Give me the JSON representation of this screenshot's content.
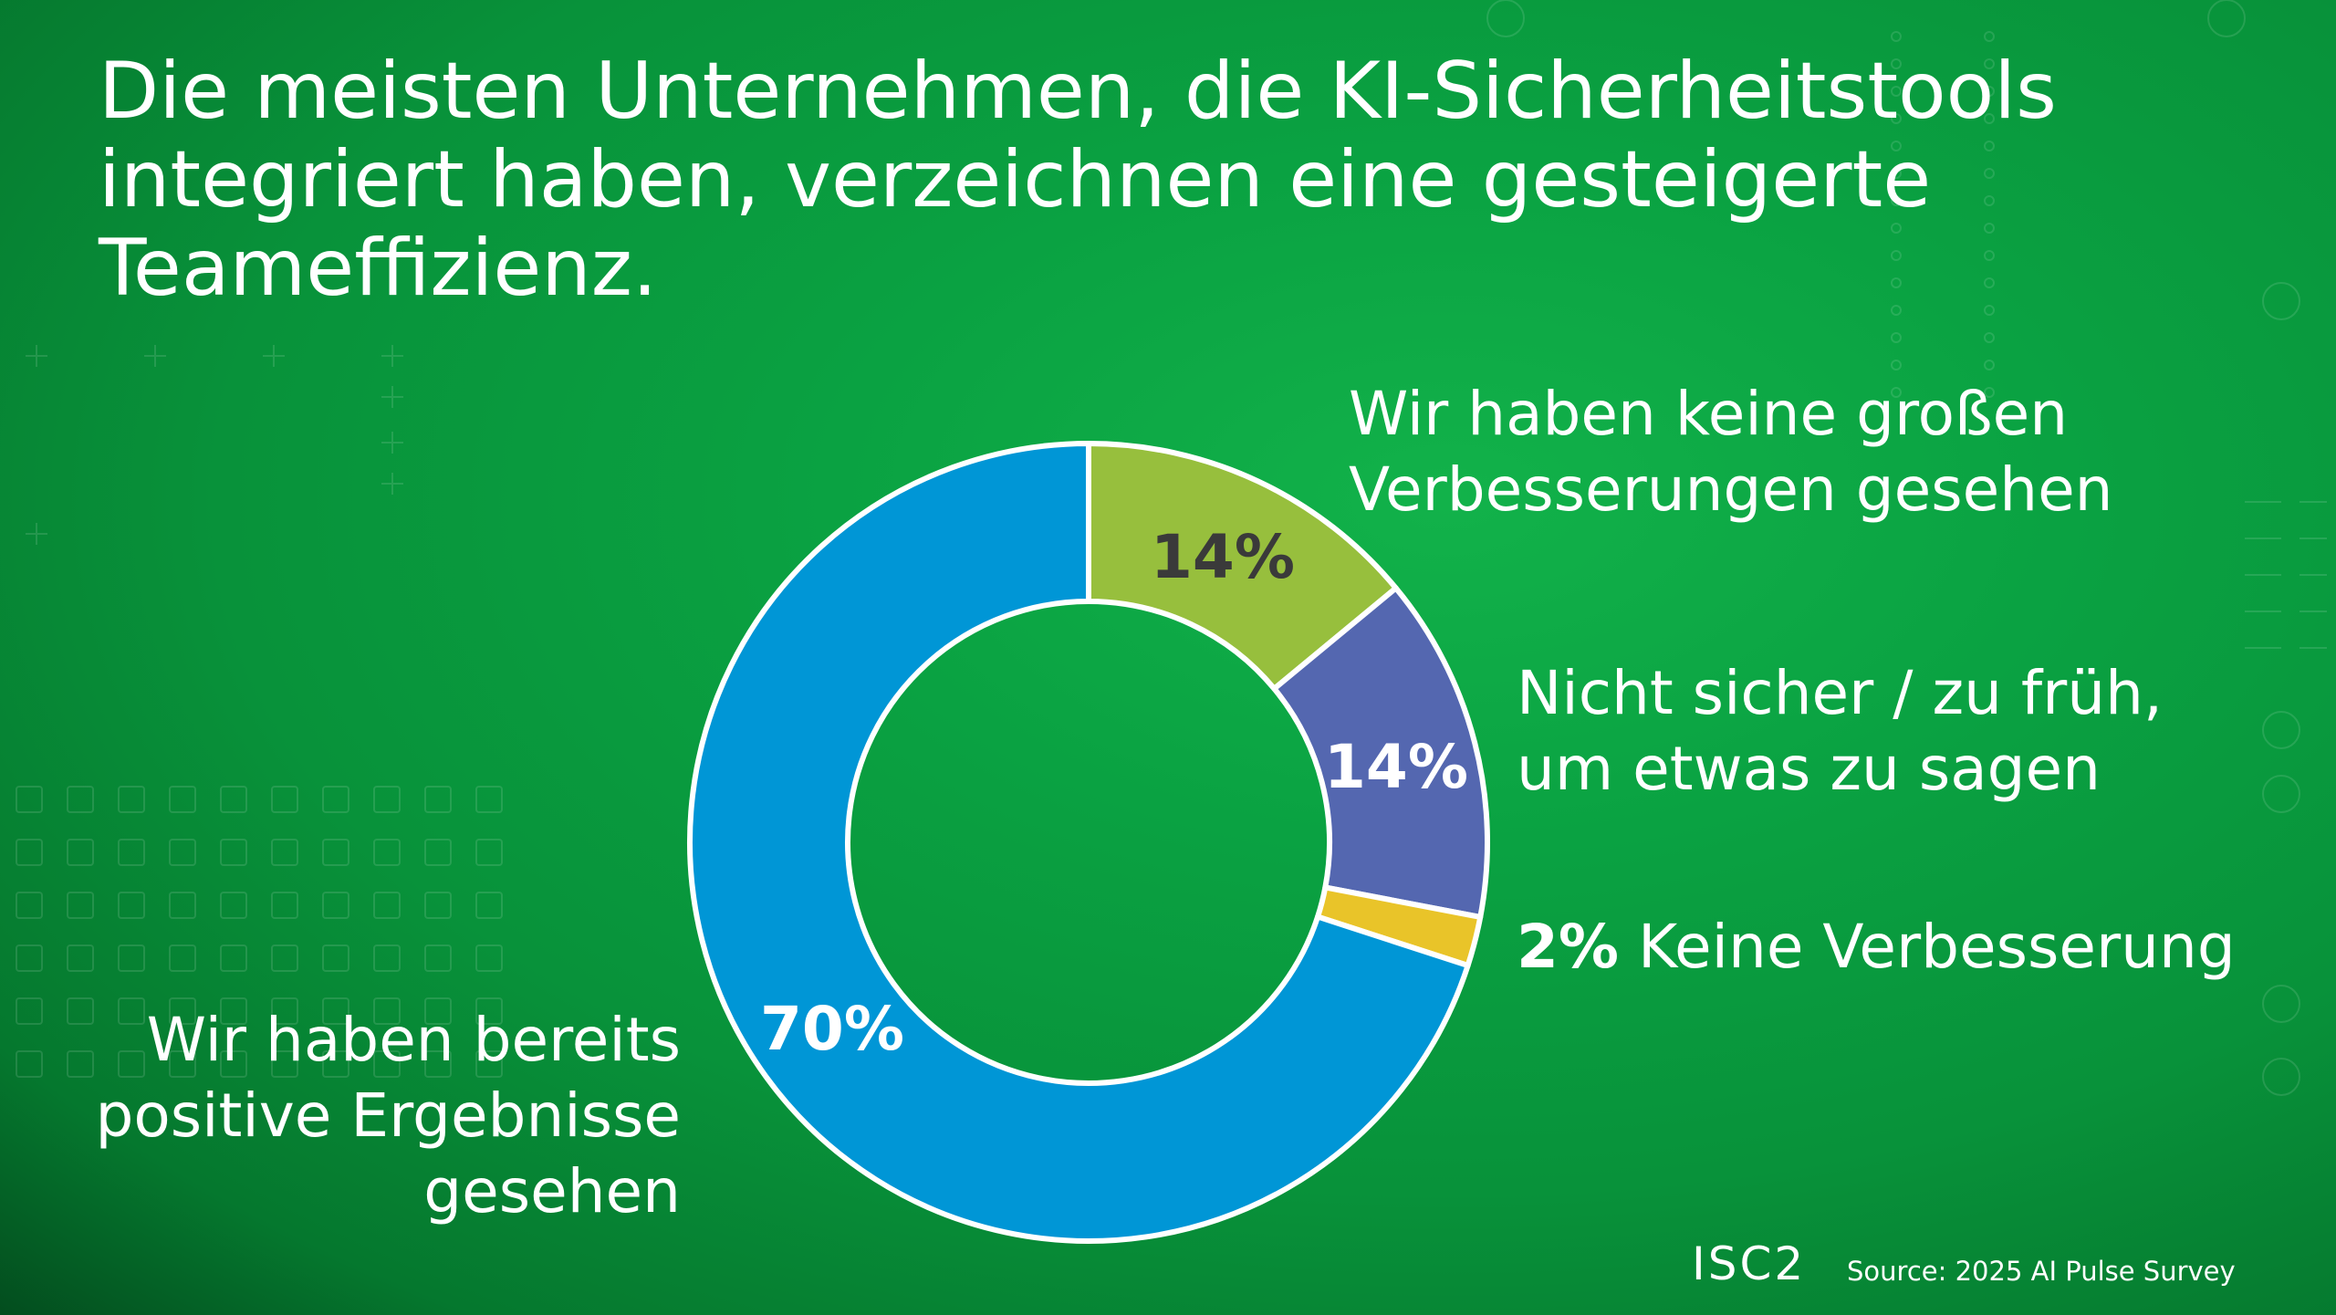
{
  "title_lines": [
    "Die meisten Unternehmen, die KI-Sicherheitstools",
    "integriert haben, verzeichnen eine gesteigerte",
    "Teameffizienz."
  ],
  "chart_data": {
    "type": "donut",
    "title": "Die meisten Unternehmen, die KI-Sicherheitstools integriert haben, verzeichnen eine gesteigerte Teameffizienz.",
    "slices": [
      {
        "label": "Wir haben keine großen Verbesserungen gesehen",
        "value": 14,
        "display": "14%",
        "color": "#97bf3d"
      },
      {
        "label": "Nicht sicher / zu früh, um etwas zu sagen",
        "value": 14,
        "display": "14%",
        "color": "#5467b0"
      },
      {
        "label": "Keine Verbesserung",
        "value": 2,
        "display": "2%",
        "color": "#e9c429"
      },
      {
        "label": "Wir haben bereits positive Ergebnisse gesehen",
        "value": 70,
        "display": "70%",
        "color": "#0096d6"
      }
    ],
    "start_angle_deg": 0,
    "direction": "clockwise"
  },
  "labels": {
    "top": [
      "Wir haben keine großen",
      "Verbesserungen gesehen"
    ],
    "mid": [
      "Nicht sicher / zu früh,",
      "um etwas zu sagen"
    ],
    "small_pct": "2%",
    "small_text": "Keine Verbesserung",
    "left": [
      "Wir haben bereits",
      "positive Ergebnisse",
      "gesehen"
    ]
  },
  "footer": {
    "logo": "ISC2",
    "source": "Source: 2025 AI Pulse Survey"
  },
  "colors": {
    "background": "#0aa242",
    "ring_stroke": "#ffffff",
    "pct_dark": "#3a3a3a",
    "pct_light": "#ffffff"
  }
}
